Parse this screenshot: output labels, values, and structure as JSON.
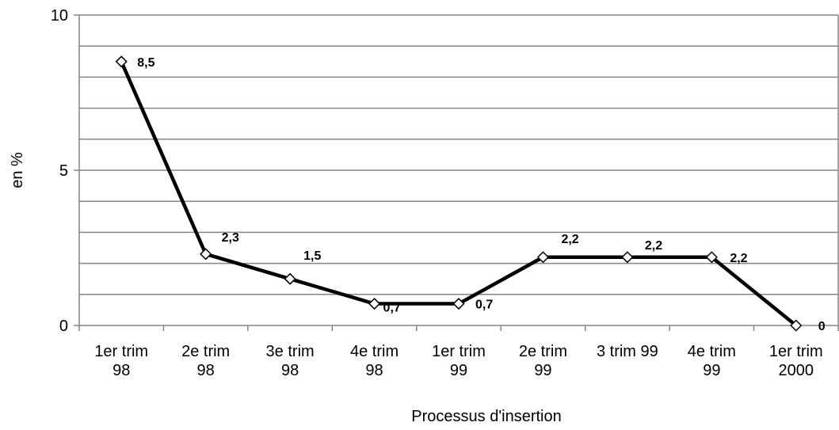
{
  "chart_data": {
    "type": "line",
    "title": "",
    "xlabel": "Processus d'insertion",
    "ylabel": "en %",
    "categories": [
      [
        "1er trim",
        "98"
      ],
      [
        "2e trim",
        "98"
      ],
      [
        "3e trim",
        "98"
      ],
      [
        "4e trim",
        "98"
      ],
      [
        "1er trim",
        "99"
      ],
      [
        "2e trim",
        "99"
      ],
      [
        "3 trim 99"
      ],
      [
        "4e trim",
        "99"
      ],
      [
        "1er trim",
        "2000"
      ]
    ],
    "series": [
      {
        "values": [
          8.5,
          2.3,
          1.5,
          0.7,
          0.7,
          2.2,
          2.2,
          2.2,
          0
        ],
        "data_labels": [
          "8,5",
          "2,3",
          "1,5",
          "0,7",
          "0,7",
          "2,2",
          "2,2",
          "2,2",
          "0"
        ],
        "color": "#000000",
        "marker": "diamond"
      }
    ],
    "ylim": [
      0,
      10
    ],
    "yticks": [
      {
        "value": 0,
        "label": "0"
      },
      {
        "value": 5,
        "label": "5"
      },
      {
        "value": 10,
        "label": "10"
      }
    ],
    "grid_step": 1,
    "grid": true,
    "legend": "none"
  }
}
